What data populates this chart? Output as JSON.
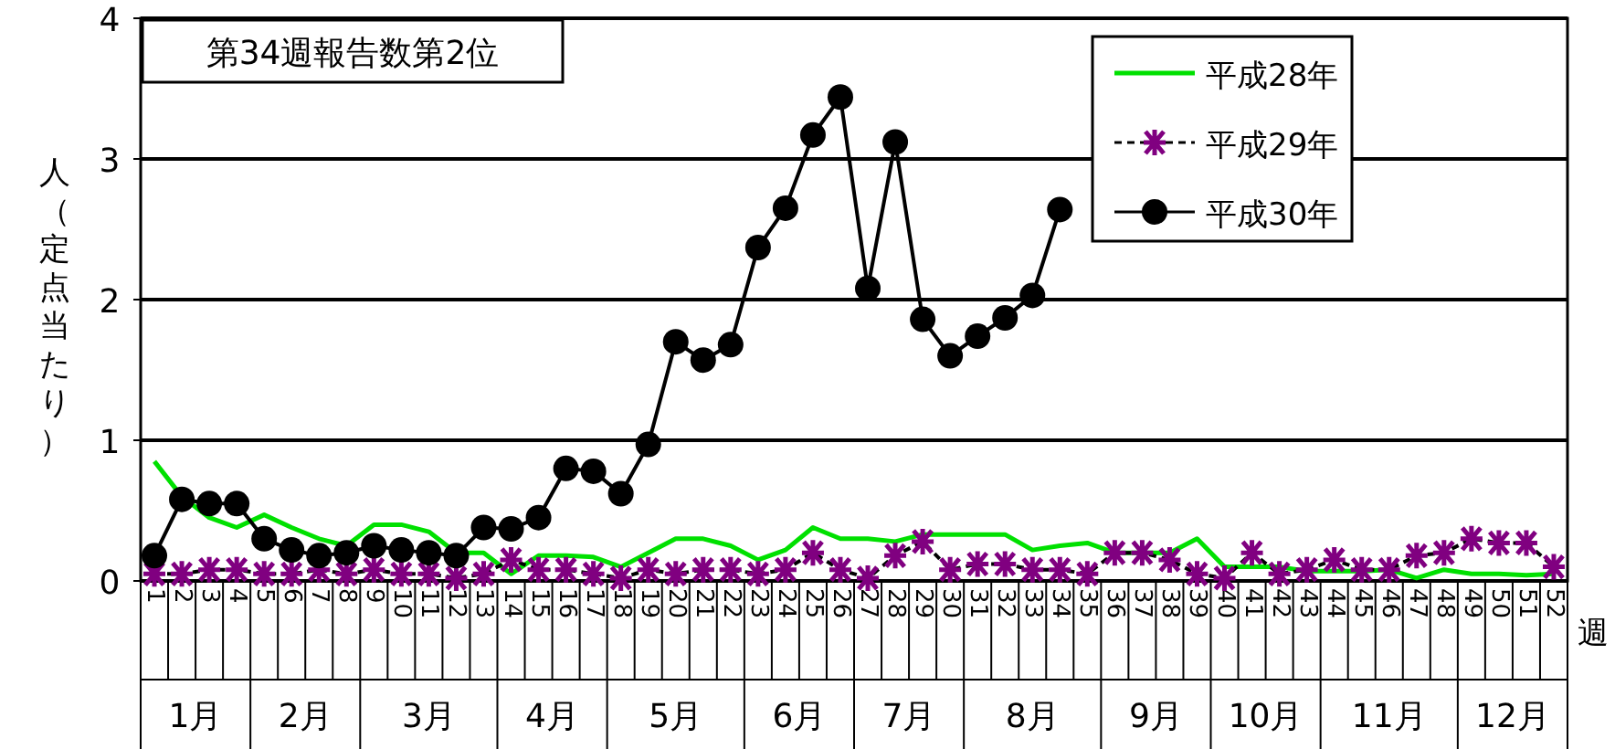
{
  "chart_data": {
    "type": "line",
    "xlabel": "週",
    "ylabel": "人（定点当たり）",
    "categories": [
      "1",
      "2",
      "3",
      "4",
      "5",
      "6",
      "7",
      "8",
      "9",
      "10",
      "11",
      "12",
      "13",
      "14",
      "15",
      "16",
      "17",
      "18",
      "19",
      "20",
      "21",
      "22",
      "23",
      "24",
      "25",
      "26",
      "27",
      "28",
      "29",
      "30",
      "31",
      "32",
      "33",
      "34",
      "35",
      "36",
      "37",
      "38",
      "39",
      "40",
      "41",
      "42",
      "43",
      "44",
      "45",
      "46",
      "47",
      "48",
      "49",
      "50",
      "51",
      "52"
    ],
    "series": [
      {
        "name": "平成28年",
        "color": "#00e000",
        "marker": "none",
        "line_style": "solid",
        "values": [
          0.85,
          0.6,
          0.45,
          0.38,
          0.47,
          0.38,
          0.3,
          0.25,
          0.4,
          0.4,
          0.35,
          0.2,
          0.2,
          0.05,
          0.18,
          0.18,
          0.17,
          0.1,
          0.2,
          0.3,
          0.3,
          0.25,
          0.15,
          0.22,
          0.38,
          0.3,
          0.3,
          0.28,
          0.33,
          0.33,
          0.33,
          0.33,
          0.22,
          0.25,
          0.27,
          0.2,
          0.2,
          0.2,
          0.3,
          0.1,
          0.1,
          0.1,
          0.07,
          0.07,
          0.07,
          0.08,
          0.02,
          0.08,
          0.05,
          0.05,
          0.04,
          0.05
        ]
      },
      {
        "name": "平成29年",
        "color": "#800080",
        "marker": "cross",
        "line_style": "dashed",
        "values": [
          0.05,
          0.05,
          0.08,
          0.08,
          0.05,
          0.05,
          0.08,
          0.05,
          0.08,
          0.05,
          0.05,
          0.02,
          0.05,
          0.15,
          0.08,
          0.08,
          0.05,
          0.02,
          0.08,
          0.05,
          0.08,
          0.08,
          0.05,
          0.08,
          0.2,
          0.08,
          0.02,
          0.18,
          0.28,
          0.08,
          0.12,
          0.12,
          0.08,
          0.08,
          0.05,
          0.2,
          0.2,
          0.15,
          0.05,
          0.02,
          0.2,
          0.05,
          0.08,
          0.15,
          0.08,
          0.08,
          0.18,
          0.2,
          0.3,
          0.27,
          0.27,
          0.1
        ]
      },
      {
        "name": "平成30年",
        "color": "#000000",
        "marker": "circle",
        "line_style": "solid",
        "values": [
          0.18,
          0.58,
          0.55,
          0.55,
          0.3,
          0.22,
          0.18,
          0.2,
          0.25,
          0.22,
          0.2,
          0.18,
          0.38,
          0.37,
          0.45,
          0.8,
          0.78,
          0.62,
          0.97,
          1.7,
          1.57,
          1.68,
          2.37,
          2.65,
          3.17,
          3.44,
          2.08,
          3.12,
          1.86,
          1.6,
          1.74,
          1.87,
          2.03,
          2.64,
          null,
          null,
          null,
          null,
          null,
          null,
          null,
          null,
          null,
          null,
          null,
          null,
          null,
          null,
          null,
          null,
          null,
          null
        ]
      }
    ],
    "ylim": [
      0,
      4
    ],
    "yticks": [
      0,
      1,
      2,
      3,
      4
    ],
    "grid": "y",
    "legend": "top right",
    "annotations": [
      "第34週報告数第2位",
      "1月",
      "2月",
      "3月",
      "4月",
      "5月",
      "6月",
      "7月",
      "8月",
      "9月",
      "10月",
      "11月",
      "12月"
    ]
  }
}
